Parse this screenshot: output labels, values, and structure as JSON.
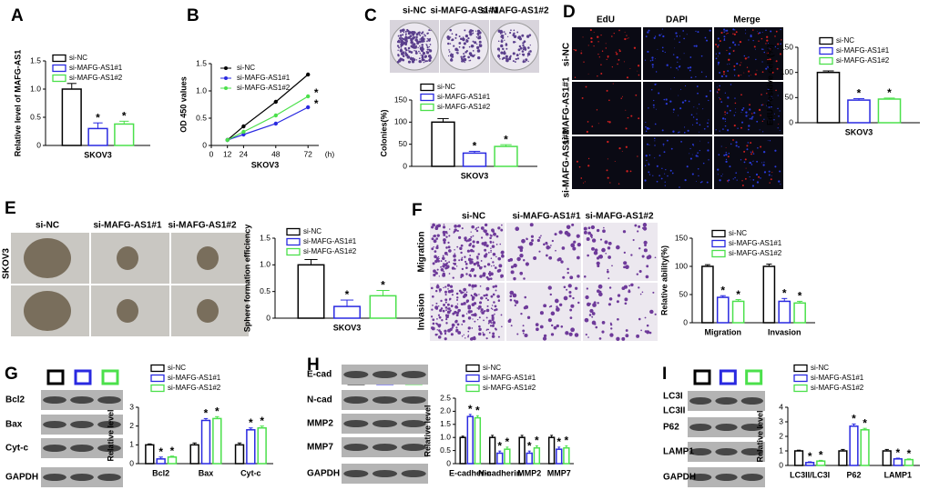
{
  "chart_data": [
    {
      "type": "bar",
      "panel": "A",
      "ylabel": "Relative level of MAFG-AS1",
      "categories": [
        "SKOV3"
      ],
      "ylim": [
        0,
        1.5
      ],
      "yticks": [
        0,
        0.5,
        {
          "value": 1,
          "label": "1.0"
        },
        1.5
      ],
      "series": [
        {
          "name": "si-NC",
          "color": "#000000",
          "values": [
            1.0
          ],
          "errors": [
            0.1
          ]
        },
        {
          "name": "si-MAFG-AS1#1",
          "color": "#2929e0",
          "values": [
            0.3
          ],
          "errors": [
            0.1
          ],
          "annotation": "*"
        },
        {
          "name": "si-MAFG-AS1#2",
          "color": "#4be04b",
          "values": [
            0.38
          ],
          "errors": [
            0.05
          ],
          "annotation": "*"
        }
      ]
    },
    {
      "type": "line",
      "panel": "B",
      "ylabel": "OD 450 values",
      "xlabel": "SKOV3",
      "x_unit": "(h)",
      "x": [
        12,
        24,
        48,
        72
      ],
      "xlim": [
        0,
        80
      ],
      "xticks": [
        0,
        12,
        24,
        48,
        72
      ],
      "ylim": [
        0,
        1.5
      ],
      "yticks": [
        0,
        0.5,
        {
          "value": 1,
          "label": "1.0"
        },
        1.5
      ],
      "series": [
        {
          "name": "si-NC",
          "color": "#000000",
          "values": [
            0.1,
            0.35,
            0.8,
            1.3
          ]
        },
        {
          "name": "si-MAFG-AS1#1",
          "color": "#2929e0",
          "values": [
            0.1,
            0.2,
            0.4,
            0.7
          ],
          "annotation": "*"
        },
        {
          "name": "si-MAFG-AS1#2",
          "color": "#4be04b",
          "values": [
            0.1,
            0.25,
            0.55,
            0.9
          ],
          "annotation": "*"
        }
      ]
    },
    {
      "type": "bar",
      "panel": "C",
      "ylabel": "Colonies(%)",
      "categories": [
        "SKOV3"
      ],
      "column_labels": [
        "si-NC",
        "si-MAFG-AS1#1",
        "si-MAFG-AS1#2"
      ],
      "ylim": [
        0,
        150
      ],
      "yticks": [
        0,
        50,
        100,
        150
      ],
      "series": [
        {
          "name": "si-NC",
          "color": "#000000",
          "values": [
            100
          ],
          "errors": [
            8
          ]
        },
        {
          "name": "si-MAFG-AS1#1",
          "color": "#2929e0",
          "values": [
            30
          ],
          "errors": [
            4
          ],
          "annotation": "*"
        },
        {
          "name": "si-MAFG-AS1#2",
          "color": "#4be04b",
          "values": [
            45
          ],
          "errors": [
            4
          ],
          "annotation": "*"
        }
      ]
    },
    {
      "type": "bar",
      "panel": "D",
      "ylabel": "EdU Positive cell (%)",
      "categories": [
        "SKOV3"
      ],
      "column_labels": [
        "EdU",
        "DAPI",
        "Merge"
      ],
      "row_labels": [
        "si-NC",
        "si-MAFG-AS1#1",
        "si-MAFG-AS1#2"
      ],
      "ylim": [
        0,
        150
      ],
      "yticks": [
        0,
        50,
        100,
        150
      ],
      "series": [
        {
          "name": "si-NC",
          "color": "#000000",
          "values": [
            100
          ],
          "errors": [
            3
          ]
        },
        {
          "name": "si-MAFG-AS1#1",
          "color": "#2929e0",
          "values": [
            45
          ],
          "errors": [
            3
          ],
          "annotation": "*"
        },
        {
          "name": "si-MAFG-AS1#2",
          "color": "#4be04b",
          "values": [
            47
          ],
          "errors": [
            2
          ],
          "annotation": "*"
        }
      ]
    },
    {
      "type": "bar",
      "panel": "E",
      "ylabel": "Sphere formation efficiency",
      "categories": [
        "SKOV3"
      ],
      "column_labels": [
        "si-NC",
        "si-MAFG-AS1#1",
        "si-MAFG-AS1#2"
      ],
      "row_labels": [
        "SKOV3"
      ],
      "ylim": [
        0,
        1.5
      ],
      "yticks": [
        0,
        0.5,
        {
          "value": 1,
          "label": "1.0"
        },
        1.5
      ],
      "series": [
        {
          "name": "si-NC",
          "color": "#000000",
          "values": [
            1.0
          ],
          "errors": [
            0.1
          ]
        },
        {
          "name": "si-MAFG-AS1#1",
          "color": "#2929e0",
          "values": [
            0.22
          ],
          "errors": [
            0.12
          ],
          "annotation": "*"
        },
        {
          "name": "si-MAFG-AS1#2",
          "color": "#4be04b",
          "values": [
            0.42
          ],
          "errors": [
            0.1
          ],
          "annotation": "*"
        }
      ]
    },
    {
      "type": "bar",
      "panel": "F",
      "ylabel": "Relative ability(%)",
      "categories": [
        "Migration",
        "Invasion"
      ],
      "column_labels": [
        "si-NC",
        "si-MAFG-AS1#1",
        "si-MAFG-AS1#2"
      ],
      "row_labels": [
        "Migration",
        "Invasion"
      ],
      "ylim": [
        0,
        150
      ],
      "yticks": [
        0,
        50,
        100,
        150
      ],
      "series": [
        {
          "name": "si-NC",
          "color": "#000000",
          "values": [
            100,
            100
          ],
          "errors": [
            3,
            4
          ]
        },
        {
          "name": "si-MAFG-AS1#1",
          "color": "#2929e0",
          "values": [
            45,
            38
          ],
          "errors": [
            3,
            5
          ],
          "annotation": "*"
        },
        {
          "name": "si-MAFG-AS1#2",
          "color": "#4be04b",
          "values": [
            38,
            35
          ],
          "errors": [
            3,
            3
          ],
          "annotation": "*"
        }
      ]
    },
    {
      "type": "bar",
      "panel": "G",
      "ylabel": "Relative level",
      "categories": [
        "Bcl2",
        "Bax",
        "Cyt-c"
      ],
      "blot_labels": [
        "Bcl2",
        "Bax",
        "Cyt-c",
        "GAPDH"
      ],
      "ylim": [
        0,
        3
      ],
      "yticks": [
        0,
        1,
        2,
        3
      ],
      "series": [
        {
          "name": "si-NC",
          "color": "#000000",
          "values": [
            1,
            1,
            1
          ],
          "errors": [
            0.05,
            0.1,
            0.1
          ]
        },
        {
          "name": "si-MAFG-AS1#1",
          "color": "#2929e0",
          "values": [
            0.25,
            2.3,
            1.8
          ],
          "errors": [
            0.1,
            0.1,
            0.1
          ],
          "annotation": "*"
        },
        {
          "name": "si-MAFG-AS1#2",
          "color": "#4be04b",
          "values": [
            0.35,
            2.4,
            1.9
          ],
          "errors": [
            0.05,
            0.1,
            0.1
          ],
          "annotation": "*"
        }
      ]
    },
    {
      "type": "bar",
      "panel": "H",
      "ylabel": "Relative level",
      "categories": [
        "E-cadherin",
        "N-cadherin",
        "MMP2",
        "MMP7"
      ],
      "blot_labels": [
        "E-cad",
        "N-cad",
        "MMP2",
        "MMP7",
        "GAPDH"
      ],
      "ylim": [
        0,
        2.5
      ],
      "yticks": [
        0,
        0.5,
        {
          "value": 1,
          "label": "1.0"
        },
        1.5,
        {
          "value": 2,
          "label": "2.0"
        },
        2.5
      ],
      "series": [
        {
          "name": "si-NC",
          "color": "#000000",
          "values": [
            1,
            1,
            1,
            1
          ],
          "errors": [
            0.05,
            0.08,
            0.08,
            0.08
          ]
        },
        {
          "name": "si-MAFG-AS1#1",
          "color": "#2929e0",
          "values": [
            1.8,
            0.4,
            0.4,
            0.55
          ],
          "errors": [
            0.08,
            0.08,
            0.08,
            0.08
          ],
          "annotation": "*"
        },
        {
          "name": "si-MAFG-AS1#2",
          "color": "#4be04b",
          "values": [
            1.75,
            0.55,
            0.6,
            0.6
          ],
          "errors": [
            0.08,
            0.08,
            0.08,
            0.08
          ],
          "annotation": "*"
        }
      ]
    },
    {
      "type": "bar",
      "panel": "I",
      "ylabel": "Relative level",
      "categories": [
        "LC3II/LC3I",
        "P62",
        "LAMP1"
      ],
      "blot_labels": [
        "LC3I",
        "LC3II",
        "P62",
        "LAMP1",
        "GAPDH"
      ],
      "ylim": [
        0,
        4
      ],
      "yticks": [
        0,
        1,
        2,
        3,
        4
      ],
      "series": [
        {
          "name": "si-NC",
          "color": "#000000",
          "values": [
            1,
            1,
            1
          ],
          "errors": [
            0.05,
            0.1,
            0.1
          ]
        },
        {
          "name": "si-MAFG-AS1#1",
          "color": "#2929e0",
          "values": [
            0.2,
            2.7,
            0.45
          ],
          "errors": [
            0.05,
            0.15,
            0.05
          ],
          "annotation": "*"
        },
        {
          "name": "si-MAFG-AS1#2",
          "color": "#4be04b",
          "values": [
            0.3,
            2.45,
            0.4
          ],
          "errors": [
            0.05,
            0.1,
            0.05
          ],
          "annotation": "*"
        }
      ]
    }
  ]
}
